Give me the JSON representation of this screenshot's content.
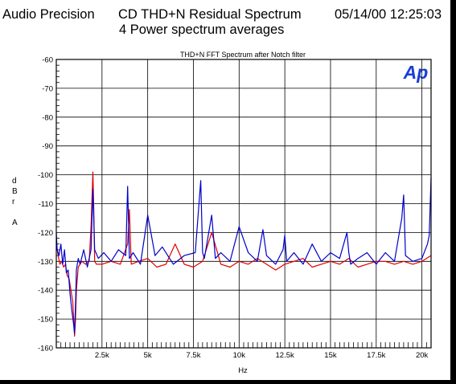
{
  "header": {
    "company": "Audio Precision",
    "title": "CD THD+N Residual Spectrum",
    "timestamp": "05/14/00 12:25:03",
    "subtitle": "4 Power spectrum averages"
  },
  "colors": {
    "series_red": "#e00000",
    "series_blue": "#0000cc",
    "logo": "#1a3fd6",
    "grid": "#000000"
  },
  "logo_text": "Ap",
  "chart_data": {
    "type": "line",
    "title": "THD+N FFT Spectrum after Notch filter",
    "xlabel": "Hz",
    "ylabel": [
      "d",
      "B",
      "r",
      "",
      "A"
    ],
    "xlim": [
      0,
      20500
    ],
    "ylim": [
      -160,
      -60
    ],
    "x_ticks": [
      {
        "value": 2500,
        "label": "2.5k"
      },
      {
        "value": 5000,
        "label": "5k"
      },
      {
        "value": 7500,
        "label": "7.5k"
      },
      {
        "value": 10000,
        "label": "10k"
      },
      {
        "value": 12500,
        "label": "12.5k"
      },
      {
        "value": 15000,
        "label": "15k"
      },
      {
        "value": 17500,
        "label": "17.5k"
      },
      {
        "value": 20000,
        "label": "20k"
      }
    ],
    "y_ticks": [
      {
        "value": -60,
        "label": "-60"
      },
      {
        "value": -70,
        "label": "-70"
      },
      {
        "value": -80,
        "label": "-80"
      },
      {
        "value": -90,
        "label": "-90"
      },
      {
        "value": -100,
        "label": "-100"
      },
      {
        "value": -110,
        "label": "-110"
      },
      {
        "value": -120,
        "label": "-120"
      },
      {
        "value": -130,
        "label": "-130"
      },
      {
        "value": -140,
        "label": "-140"
      },
      {
        "value": -150,
        "label": "-150"
      },
      {
        "value": -160,
        "label": "-160"
      }
    ],
    "grid": true,
    "legend": "none",
    "series": [
      {
        "color": "#e00000",
        "x": [
          0,
          100,
          200,
          300,
          400,
          500,
          600,
          700,
          800,
          900,
          1000,
          1050,
          1100,
          1200,
          1400,
          1600,
          1800,
          1900,
          2000,
          2050,
          2100,
          2200,
          2500,
          3000,
          3500,
          3900,
          4000,
          4100,
          4500,
          5000,
          5500,
          6000,
          6500,
          7000,
          7500,
          8000,
          8500,
          9000,
          9500,
          10000,
          10500,
          11000,
          11500,
          12000,
          12500,
          13000,
          13500,
          14000,
          14500,
          15000,
          15500,
          16000,
          16500,
          17000,
          17500,
          18000,
          18500,
          19000,
          19500,
          20000,
          20500
        ],
        "y": [
          -124,
          -128,
          -131,
          -130,
          -132,
          -131,
          -135,
          -136,
          -140,
          -144,
          -156,
          -150,
          -140,
          -132,
          -130,
          -131,
          -130,
          -118,
          -99,
          -112,
          -130,
          -131,
          -131,
          -130,
          -131,
          -124,
          -112,
          -131,
          -130,
          -129,
          -132,
          -131,
          -124,
          -131,
          -132,
          -130,
          -120,
          -131,
          -132,
          -130,
          -131,
          -129,
          -131,
          -133,
          -131,
          -130,
          -129,
          -132,
          -131,
          -130,
          -131,
          -129,
          -132,
          -131,
          -130,
          -130,
          -131,
          -130,
          -131,
          -130,
          -128
        ]
      },
      {
        "color": "#0000cc",
        "x": [
          0,
          50,
          150,
          250,
          350,
          450,
          550,
          650,
          750,
          850,
          950,
          1000,
          1050,
          1100,
          1200,
          1300,
          1500,
          1700,
          1900,
          2000,
          2100,
          2300,
          2600,
          3000,
          3400,
          3800,
          3900,
          4000,
          4200,
          4600,
          5000,
          5400,
          5800,
          6400,
          7000,
          7600,
          7900,
          8000,
          8100,
          8500,
          8700,
          9000,
          9500,
          10000,
          10500,
          11000,
          11300,
          11500,
          12000,
          12400,
          12500,
          12600,
          13000,
          13500,
          14000,
          14500,
          15000,
          15500,
          15900,
          16000,
          16100,
          16500,
          17000,
          17500,
          18000,
          18500,
          18900,
          19000,
          19100,
          19500,
          20000,
          20300,
          20400,
          20500
        ],
        "y": [
          -120,
          -126,
          -128,
          -124,
          -131,
          -126,
          -134,
          -133,
          -141,
          -147,
          -152,
          -155,
          -145,
          -133,
          -129,
          -131,
          -126,
          -132,
          -126,
          -105,
          -126,
          -129,
          -127,
          -130,
          -126,
          -128,
          -104,
          -129,
          -127,
          -131,
          -114,
          -128,
          -125,
          -131,
          -128,
          -127,
          -102,
          -127,
          -129,
          -114,
          -129,
          -127,
          -130,
          -118,
          -127,
          -130,
          -119,
          -128,
          -131,
          -126,
          -121,
          -130,
          -127,
          -131,
          -124,
          -130,
          -127,
          -129,
          -120,
          -127,
          -131,
          -129,
          -127,
          -131,
          -127,
          -130,
          -115,
          -107,
          -128,
          -130,
          -129,
          -124,
          -121,
          -101
        ]
      }
    ]
  }
}
